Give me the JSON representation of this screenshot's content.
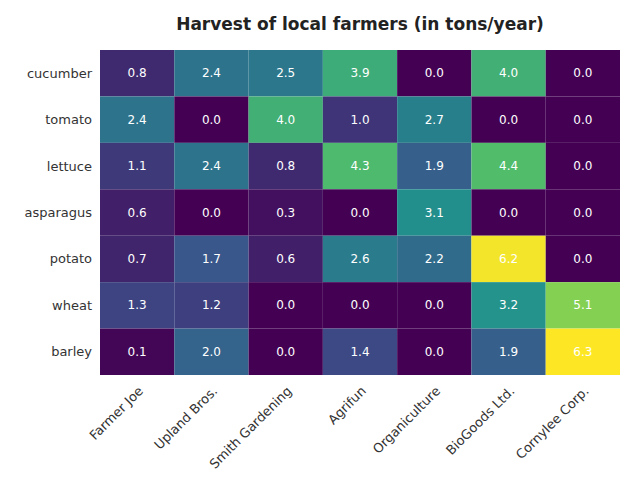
{
  "chart_data": {
    "type": "heatmap",
    "title": "Harvest of local farmers (in tons/year)",
    "categories": [
      "Farmer Joe",
      "Upland Bros.",
      "Smith Gardening",
      "Agrifun",
      "Organiculture",
      "BioGoods Ltd.",
      "Cornylee Corp."
    ],
    "rows": [
      "cucumber",
      "tomato",
      "lettuce",
      "asparagus",
      "potato",
      "wheat",
      "barley"
    ],
    "values": [
      [
        0.8,
        2.4,
        2.5,
        3.9,
        0.0,
        4.0,
        0.0
      ],
      [
        2.4,
        0.0,
        4.0,
        1.0,
        2.7,
        0.0,
        0.0
      ],
      [
        1.1,
        2.4,
        0.8,
        4.3,
        1.9,
        4.4,
        0.0
      ],
      [
        0.6,
        0.0,
        0.3,
        0.0,
        3.1,
        0.0,
        0.0
      ],
      [
        0.7,
        1.7,
        0.6,
        2.6,
        2.2,
        6.2,
        0.0
      ],
      [
        1.3,
        1.2,
        0.0,
        0.0,
        0.0,
        3.2,
        5.1
      ],
      [
        0.1,
        2.0,
        0.0,
        1.4,
        0.0,
        1.9,
        6.3
      ]
    ],
    "value_labels": [
      [
        "0.8",
        "2.4",
        "2.5",
        "3.9",
        "0.0",
        "4.0",
        "0.0"
      ],
      [
        "2.4",
        "0.0",
        "4.0",
        "1.0",
        "2.7",
        "0.0",
        "0.0"
      ],
      [
        "1.1",
        "2.4",
        "0.8",
        "4.3",
        "1.9",
        "4.4",
        "0.0"
      ],
      [
        "0.6",
        "0.0",
        "0.3",
        "0.0",
        "3.1",
        "0.0",
        "0.0"
      ],
      [
        "0.7",
        "1.7",
        "0.6",
        "2.6",
        "2.2",
        "6.2",
        "0.0"
      ],
      [
        "1.3",
        "1.2",
        "0.0",
        "0.0",
        "0.0",
        "3.2",
        "5.1"
      ],
      [
        "0.1",
        "2.0",
        "0.0",
        "1.4",
        "0.0",
        "1.9",
        "6.3"
      ]
    ],
    "color": "viridis",
    "data_labels": true
  }
}
